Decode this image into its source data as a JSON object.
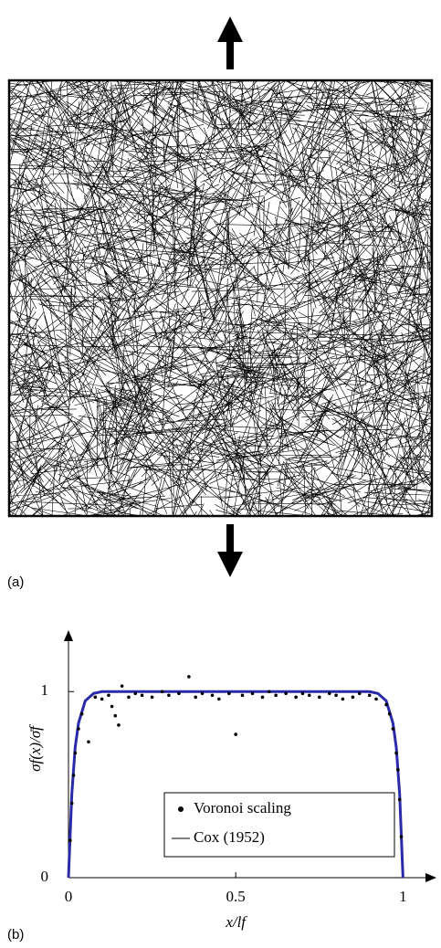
{
  "panel_labels": {
    "a": "(a)",
    "b": "(b)"
  },
  "chart_data": {
    "type": "scatter",
    "x_label": "x/lf",
    "y_label": "σf(x)/σ̄f",
    "xlim": [
      0,
      1.1
    ],
    "ylim": [
      0,
      1.33
    ],
    "xticks": [
      0,
      0.5,
      1
    ],
    "yticks": [
      0,
      1
    ],
    "series": [
      {
        "name": "Voronoi scaling",
        "type": "scatter",
        "color": "#000000",
        "x": [
          0.005,
          0.01,
          0.015,
          0.02,
          0.03,
          0.04,
          0.06,
          0.08,
          0.1,
          0.12,
          0.13,
          0.14,
          0.15,
          0.16,
          0.18,
          0.2,
          0.22,
          0.25,
          0.28,
          0.3,
          0.33,
          0.36,
          0.38,
          0.4,
          0.43,
          0.45,
          0.48,
          0.5,
          0.52,
          0.55,
          0.58,
          0.6,
          0.62,
          0.65,
          0.68,
          0.7,
          0.72,
          0.75,
          0.78,
          0.8,
          0.82,
          0.85,
          0.87,
          0.9,
          0.92,
          0.95,
          0.96,
          0.97,
          0.98,
          0.985,
          0.99,
          0.995
        ],
        "values": [
          0.2,
          0.4,
          0.55,
          0.67,
          0.8,
          0.88,
          0.73,
          0.97,
          0.96,
          0.98,
          0.92,
          0.87,
          0.82,
          1.03,
          0.97,
          0.99,
          0.98,
          0.97,
          1.0,
          0.98,
          0.99,
          1.08,
          0.97,
          0.99,
          0.98,
          0.96,
          0.99,
          0.77,
          0.98,
          0.99,
          0.97,
          1.0,
          0.98,
          0.99,
          0.97,
          0.99,
          0.98,
          0.97,
          0.99,
          0.98,
          0.96,
          0.97,
          0.99,
          0.98,
          0.96,
          0.93,
          0.88,
          0.8,
          0.67,
          0.58,
          0.42,
          0.22
        ]
      },
      {
        "name": "Cox (1952)",
        "type": "line",
        "color": "#2a2aa8",
        "x": [
          0,
          0.01,
          0.02,
          0.03,
          0.05,
          0.075,
          0.1,
          0.15,
          0.2,
          0.3,
          0.4,
          0.5,
          0.6,
          0.7,
          0.8,
          0.85,
          0.9,
          0.925,
          0.95,
          0.97,
          0.98,
          0.99,
          1
        ],
        "values": [
          0,
          0.45,
          0.7,
          0.83,
          0.95,
          0.99,
          1.0,
          1.0,
          1.0,
          1.0,
          1.0,
          1.0,
          1.0,
          1.0,
          1.0,
          1.0,
          1.0,
          0.99,
          0.95,
          0.83,
          0.7,
          0.45,
          0
        ]
      }
    ]
  }
}
